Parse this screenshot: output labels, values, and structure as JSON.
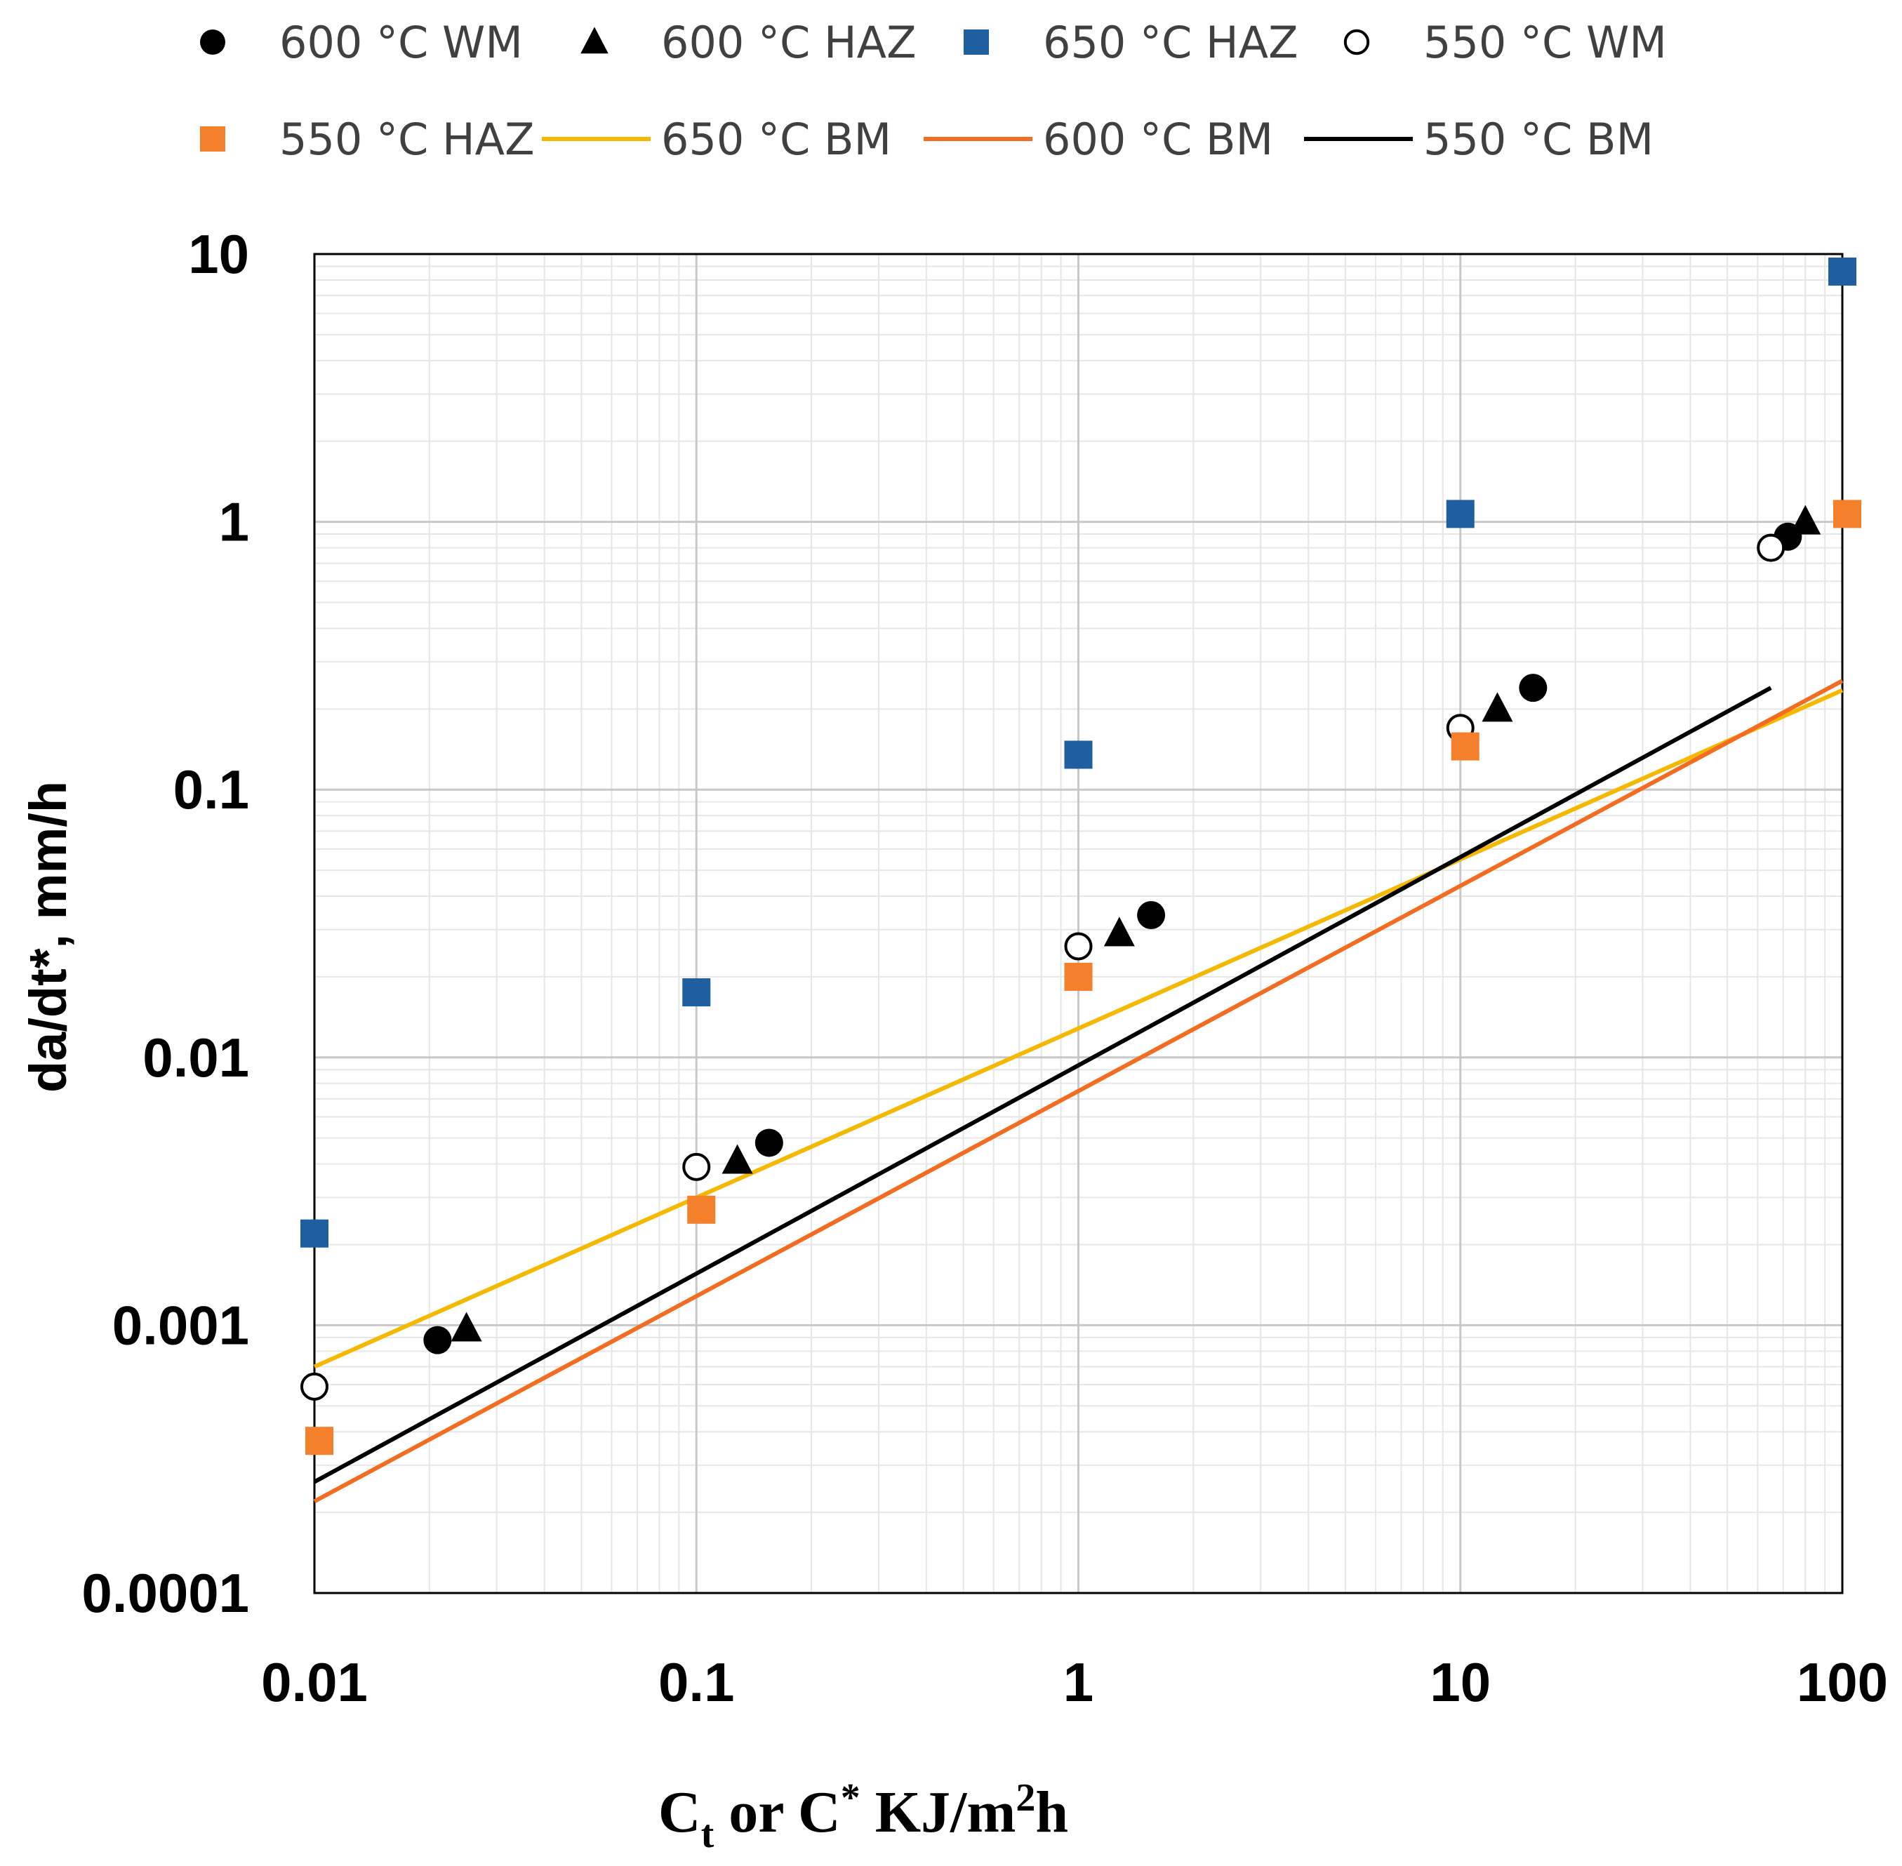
{
  "chart_data": {
    "type": "scatter",
    "title": "",
    "xlabel_parts": {
      "base": "C",
      "sub": "t",
      "mid": " or C",
      "sup1": "*",
      "unit": " KJ/m",
      "sup2": "2",
      "end": "h"
    },
    "xlabel": "Ct or C* KJ/m2h",
    "ylabel": "da/dt*, mm/h",
    "xscale": "log",
    "yscale": "log",
    "xlim": [
      0.01,
      100
    ],
    "ylim": [
      0.0001,
      10
    ],
    "x_ticks": [
      0.01,
      0.1,
      1,
      10,
      100
    ],
    "x_tick_labels": [
      "0.01",
      "0.1",
      "1",
      "10",
      "100"
    ],
    "y_ticks": [
      0.0001,
      0.001,
      0.01,
      0.1,
      1,
      10
    ],
    "y_tick_labels": [
      "0.0001",
      "0.001",
      "0.01",
      "0.1",
      "1",
      "10"
    ],
    "grid": true,
    "legend_position": "top",
    "series": [
      {
        "name": "600 °C WM",
        "kind": "marker",
        "marker": "circle-filled",
        "color": "#000000",
        "x": [
          0.021,
          0.155,
          1.55,
          15.5,
          72
        ],
        "y": [
          0.00088,
          0.0048,
          0.034,
          0.24,
          0.88
        ]
      },
      {
        "name": "600 °C HAZ",
        "kind": "marker",
        "marker": "triangle",
        "color": "#000000",
        "x": [
          0.025,
          0.128,
          1.28,
          12.5,
          80
        ],
        "y": [
          0.00097,
          0.0041,
          0.029,
          0.2,
          1.0
        ]
      },
      {
        "name": "650 °C HAZ",
        "kind": "marker",
        "marker": "square",
        "color": "#1f5fa0",
        "x": [
          0.01,
          0.1,
          1,
          10,
          100
        ],
        "y": [
          0.0022,
          0.0175,
          0.135,
          1.07,
          8.6
        ]
      },
      {
        "name": "550 °C WM",
        "kind": "marker",
        "marker": "circle-open",
        "color": "#000000",
        "x": [
          0.01,
          0.1,
          1,
          10,
          65
        ],
        "y": [
          0.00059,
          0.0039,
          0.026,
          0.17,
          0.8
        ]
      },
      {
        "name": "550 °C HAZ",
        "kind": "marker",
        "marker": "square",
        "color": "#f4802b",
        "x": [
          0.0103,
          0.103,
          1,
          10.3,
          103
        ],
        "y": [
          0.00037,
          0.0027,
          0.02,
          0.145,
          1.07
        ]
      },
      {
        "name": "650 °C BM",
        "kind": "line",
        "color": "#f5b800",
        "x": [
          0.01,
          100
        ],
        "y": [
          0.0007,
          0.235
        ]
      },
      {
        "name": "600 °C BM",
        "kind": "line",
        "color": "#f26d21",
        "x": [
          0.01,
          100
        ],
        "y": [
          0.00022,
          0.255
        ]
      },
      {
        "name": "550 °C BM",
        "kind": "line",
        "color": "#000000",
        "x": [
          0.01,
          65
        ],
        "y": [
          0.00026,
          0.24
        ]
      }
    ]
  }
}
